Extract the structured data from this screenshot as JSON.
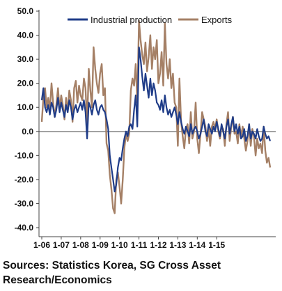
{
  "chart_data": {
    "type": "line",
    "title": "",
    "xlabel": "",
    "ylabel": "",
    "ylim": [
      -40,
      50
    ],
    "yticks": [
      "50.0",
      "40.0",
      "30.0",
      "20.0",
      "10.0",
      "0.0",
      "-10.0",
      "-20.0",
      "-30.0",
      "-40.0"
    ],
    "xticks": [
      "1-06",
      "1-07",
      "1-08",
      "1-09",
      "1-10",
      "1-11",
      "1-12",
      "1-13",
      "1-14",
      "1-15"
    ],
    "x_start": "2006-01",
    "x_end": "2015-10",
    "grid": false,
    "legend_position": "top",
    "series": [
      {
        "name": "Industrial production",
        "color": "#1f3c88",
        "values": [
          13,
          18,
          10,
          8,
          11,
          7,
          12,
          10,
          6,
          9,
          14,
          8,
          12,
          9,
          6,
          11,
          8,
          13,
          10,
          5,
          9,
          11,
          8,
          10,
          12,
          9,
          13,
          8,
          -3,
          12,
          10,
          7,
          11,
          13,
          9,
          7,
          10,
          11,
          9,
          8,
          5,
          1,
          -10,
          -15,
          -20,
          -25,
          -22,
          -15,
          -11,
          -12,
          -7,
          -3,
          0,
          -2,
          2,
          3,
          1,
          9,
          15,
          2,
          35,
          30,
          23,
          17,
          24,
          19,
          14,
          22,
          15,
          20,
          17,
          12,
          11,
          9,
          13,
          8,
          15,
          10,
          7,
          9,
          6,
          8,
          10,
          7,
          3,
          8,
          4,
          1,
          -1,
          2,
          0,
          -2,
          3,
          -1,
          1,
          2,
          0,
          -3,
          -1,
          2,
          5,
          0,
          -2,
          3,
          1,
          -1,
          2,
          0,
          4,
          1,
          -2,
          3,
          0,
          -3,
          2,
          5,
          -1,
          3,
          6,
          0,
          3,
          -1,
          2,
          -3,
          -2,
          1,
          -4,
          -2,
          3,
          -3,
          0,
          -1,
          -3,
          1,
          -2,
          -4,
          -3,
          2,
          -1,
          -3,
          -2,
          -4
        ]
      },
      {
        "name": "Exports",
        "color": "#a58066",
        "values": [
          4,
          14,
          18,
          10,
          14,
          9,
          20,
          12,
          6,
          11,
          18,
          9,
          15,
          11,
          5,
          14,
          8,
          17,
          13,
          4,
          18,
          21,
          12,
          19,
          15,
          13,
          22,
          18,
          3,
          26,
          17,
          10,
          35,
          26,
          20,
          16,
          24,
          28,
          15,
          18,
          -5,
          -8,
          -18,
          -24,
          -32,
          -34,
          -20,
          -17,
          -23,
          -30,
          -20,
          -7,
          -1,
          -4,
          -1,
          17,
          22,
          19,
          28,
          12,
          46,
          38,
          32,
          28,
          37,
          25,
          31,
          40,
          26,
          35,
          30,
          38,
          20,
          24,
          33,
          19,
          45,
          28,
          22,
          30,
          18,
          24,
          12,
          10,
          -6,
          22,
          4,
          -2,
          -7,
          1,
          3,
          -5,
          8,
          -3,
          0,
          12,
          -3,
          -9,
          -1,
          8,
          5,
          2,
          -4,
          1,
          -6,
          2,
          4,
          1,
          5,
          0,
          -3,
          2,
          1,
          -6,
          3,
          8,
          -4,
          2,
          6,
          -1,
          0,
          -5,
          3,
          -2,
          2,
          -3,
          -8,
          -4,
          3,
          -6,
          1,
          -2,
          -10,
          -3,
          -7,
          -5,
          -9,
          2,
          -8,
          -13,
          -11,
          -15
        ]
      }
    ]
  },
  "source_text": "Sources: Statistics Korea, SG Cross Asset Research/Economics"
}
